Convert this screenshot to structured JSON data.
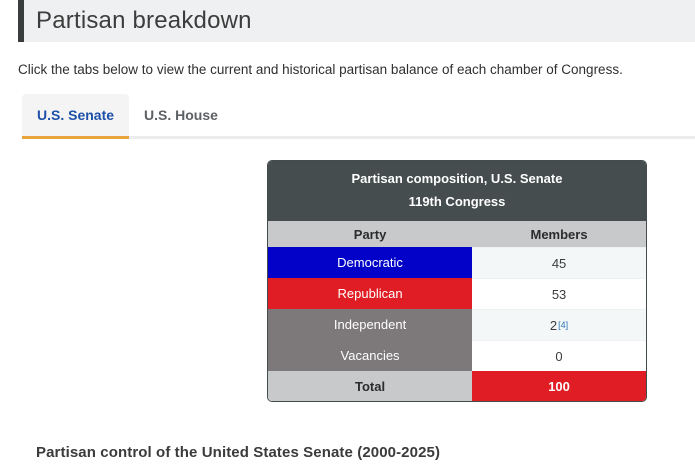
{
  "header": {
    "title": "Partisan breakdown"
  },
  "intro": {
    "text": "Click the tabs below to view the current and historical partisan balance of each chamber of Congress."
  },
  "tabs": [
    {
      "label": "U.S. Senate",
      "active": true
    },
    {
      "label": "U.S. House",
      "active": false
    }
  ],
  "table": {
    "title_line1": "Partisan composition, U.S. Senate",
    "title_line2": "119th Congress",
    "columns": {
      "party": "Party",
      "members": "Members"
    },
    "rows": [
      {
        "party": "Democratic",
        "members": "45",
        "color": "#0202c8"
      },
      {
        "party": "Republican",
        "members": "53",
        "color": "#e01d24"
      },
      {
        "party": "Independent",
        "members": "2",
        "footnote": "[4]",
        "color": "#7d797a"
      },
      {
        "party": "Vacancies",
        "members": "0",
        "color": "#7d797a"
      }
    ],
    "total": {
      "label": "Total",
      "value": "100",
      "value_bg": "#e01d24"
    }
  },
  "section_heading": "Partisan control of the United States Senate (2000-2025)",
  "colors": {
    "democratic_blue": "#0202c8",
    "republican_red": "#e01d24",
    "independent_gray": "#7d797a",
    "total_red": "#e01d24",
    "active_tab_blue": "#1d50a8",
    "tab_underline_orange": "#e9a43b",
    "table_header_dark": "#454d4e",
    "subheader_gray": "#c7c9cb",
    "footnote_link_blue": "#2a72b5",
    "page_header_bg": "#eff0f1"
  }
}
